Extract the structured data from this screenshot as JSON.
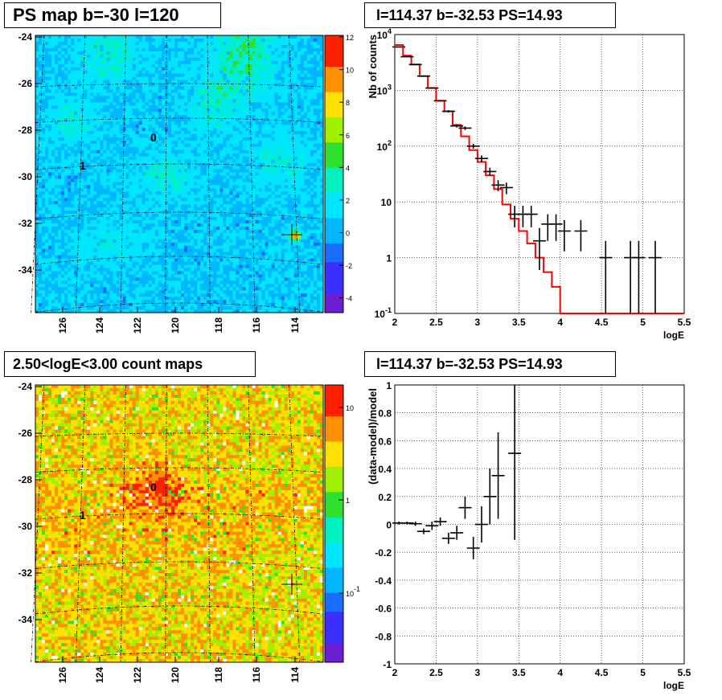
{
  "panels": {
    "ps_map_title": "PS map b=-30 l=120",
    "count_map_title": "2.50<logE<3.00 count maps",
    "spectrum_title": "l=114.37 b=-32.53 PS=14.93",
    "residual_title": "l=114.37 b=-32.53 PS=14.93"
  },
  "chart_data": [
    {
      "type": "heatmap",
      "title": "PS map b=-30 l=120",
      "x_ticks": [
        "126",
        "124",
        "122",
        "120",
        "118",
        "116",
        "114"
      ],
      "y_ticks": [
        "-24",
        "-26",
        "-28",
        "-30",
        "-32",
        "-34"
      ],
      "colorbar_ticks": [
        "12",
        "10",
        "8",
        "6",
        "4",
        "2",
        "0",
        "-2",
        "-4"
      ],
      "colorbar_range": [
        -5,
        12
      ],
      "source_labels": [
        "0",
        "1"
      ],
      "marked_source": {
        "l": 114.37,
        "b": -32.53,
        "PS": 14.93
      },
      "colormap": [
        "#6b1fd1",
        "#3a2fff",
        "#1a6cff",
        "#00b7ff",
        "#00e6ff",
        "#00f0c0",
        "#30e030",
        "#a0f000",
        "#ffe000",
        "#ff9000",
        "#ff2000"
      ]
    },
    {
      "type": "line",
      "title": "l=114.37 b=-32.53 PS=14.93",
      "xlabel": "logE",
      "ylabel": "Nb of counts",
      "xlim": [
        2,
        5.5
      ],
      "ylim": [
        0.1,
        10000
      ],
      "ylog": true,
      "x_ticks": [
        "2",
        "2.5",
        "3",
        "3.5",
        "4",
        "4.5",
        "5",
        "5.5"
      ],
      "y_ticks": [
        "10^-1",
        "1",
        "10",
        "10^2",
        "10^3",
        "10^4"
      ],
      "grid": true,
      "series": [
        {
          "kind": "model-step",
          "color": "#ff0000",
          "x_edges": [
            2.0,
            2.1,
            2.2,
            2.3,
            2.4,
            2.5,
            2.6,
            2.7,
            2.8,
            2.9,
            3.0,
            3.1,
            3.2,
            3.3,
            3.4,
            3.5,
            3.6,
            3.7,
            3.8,
            3.9,
            4.0,
            5.5
          ],
          "values": [
            6500,
            4200,
            2900,
            1800,
            1100,
            650,
            420,
            240,
            150,
            85,
            52,
            30,
            17,
            9,
            5,
            3,
            1.8,
            1.0,
            0.55,
            0.3,
            0.1
          ]
        },
        {
          "kind": "data-points",
          "color": "#000000",
          "points": [
            {
              "x": 2.05,
              "y": 6000,
              "lo": 5900,
              "hi": 6100
            },
            {
              "x": 2.15,
              "y": 4000,
              "lo": 3950,
              "hi": 4050
            },
            {
              "x": 2.25,
              "y": 2900,
              "lo": 2850,
              "hi": 2950
            },
            {
              "x": 2.35,
              "y": 1800,
              "lo": 1770,
              "hi": 1830
            },
            {
              "x": 2.45,
              "y": 1100,
              "lo": 1080,
              "hi": 1120
            },
            {
              "x": 2.55,
              "y": 650,
              "lo": 630,
              "hi": 670
            },
            {
              "x": 2.65,
              "y": 420,
              "lo": 400,
              "hi": 440
            },
            {
              "x": 2.75,
              "y": 230,
              "lo": 215,
              "hi": 245
            },
            {
              "x": 2.85,
              "y": 210,
              "lo": 195,
              "hi": 225
            },
            {
              "x": 2.95,
              "y": 100,
              "lo": 90,
              "hi": 110
            },
            {
              "x": 3.05,
              "y": 60,
              "lo": 52,
              "hi": 68
            },
            {
              "x": 3.15,
              "y": 35,
              "lo": 29,
              "hi": 41
            },
            {
              "x": 3.25,
              "y": 20,
              "lo": 15.5,
              "hi": 24.5
            },
            {
              "x": 3.35,
              "y": 18,
              "lo": 13.8,
              "hi": 22.2
            },
            {
              "x": 3.45,
              "y": 6,
              "lo": 3.5,
              "hi": 8.5
            },
            {
              "x": 3.55,
              "y": 6,
              "lo": 3.5,
              "hi": 8.5
            },
            {
              "x": 3.65,
              "y": 6,
              "lo": 3.5,
              "hi": 8.5
            },
            {
              "x": 3.75,
              "y": 2,
              "lo": 0.6,
              "hi": 3.4
            },
            {
              "x": 3.85,
              "y": 4,
              "lo": 2,
              "hi": 6
            },
            {
              "x": 3.95,
              "y": 4,
              "lo": 2,
              "hi": 6
            },
            {
              "x": 4.05,
              "y": 3,
              "lo": 1.3,
              "hi": 4.7
            },
            {
              "x": 4.25,
              "y": 3,
              "lo": 1.3,
              "hi": 4.7
            },
            {
              "x": 4.55,
              "y": 1,
              "lo": 0.1,
              "hi": 2
            },
            {
              "x": 4.85,
              "y": 1,
              "lo": 0.1,
              "hi": 2
            },
            {
              "x": 4.95,
              "y": 1,
              "lo": 0.1,
              "hi": 2
            },
            {
              "x": 5.15,
              "y": 1,
              "lo": 0.1,
              "hi": 2
            }
          ]
        }
      ]
    },
    {
      "type": "heatmap",
      "title": "2.50<logE<3.00 count maps",
      "x_ticks": [
        "126",
        "124",
        "122",
        "120",
        "118",
        "116",
        "114"
      ],
      "y_ticks": [
        "-24",
        "-26",
        "-28",
        "-30",
        "-32",
        "-34"
      ],
      "colorbar_ticks": [
        "10",
        "1",
        "10^-1"
      ],
      "colorbar_log": true,
      "source_labels": [
        "0",
        "1"
      ],
      "colormap": [
        "#6b1fd1",
        "#3a2fff",
        "#1a6cff",
        "#00b7ff",
        "#00e6ff",
        "#00f0c0",
        "#30e030",
        "#a0f000",
        "#ffe000",
        "#ff9000",
        "#ff2000"
      ]
    },
    {
      "type": "scatter",
      "title": "l=114.37 b=-32.53 PS=14.93",
      "xlabel": "logE",
      "ylabel": "(data-model)/model",
      "xlim": [
        2,
        5.5
      ],
      "ylim": [
        -1,
        1
      ],
      "x_ticks": [
        "2",
        "2.5",
        "3",
        "3.5",
        "4",
        "4.5",
        "5",
        "5.5"
      ],
      "y_ticks": [
        "-1",
        "-0.8",
        "-0.6",
        "-0.4",
        "-0.2",
        "0",
        "0.2",
        "0.4",
        "0.6",
        "0.8",
        "1"
      ],
      "grid": true,
      "points": [
        {
          "x": 2.05,
          "y": 0.01,
          "err": 0.01
        },
        {
          "x": 2.15,
          "y": 0.01,
          "err": 0.01
        },
        {
          "x": 2.25,
          "y": 0.005,
          "err": 0.015
        },
        {
          "x": 2.35,
          "y": -0.05,
          "err": 0.02
        },
        {
          "x": 2.45,
          "y": -0.01,
          "err": 0.03
        },
        {
          "x": 2.55,
          "y": 0.02,
          "err": 0.03
        },
        {
          "x": 2.65,
          "y": -0.1,
          "err": 0.04
        },
        {
          "x": 2.75,
          "y": -0.06,
          "err": 0.05
        },
        {
          "x": 2.85,
          "y": 0.12,
          "err": 0.08
        },
        {
          "x": 2.95,
          "y": -0.17,
          "err": 0.08
        },
        {
          "x": 3.05,
          "y": 0.0,
          "err": 0.13
        },
        {
          "x": 3.15,
          "y": 0.2,
          "err": 0.2
        },
        {
          "x": 3.25,
          "y": 0.35,
          "err": 0.31
        },
        {
          "x": 3.45,
          "y": 0.51,
          "err": 0.62
        }
      ]
    }
  ]
}
